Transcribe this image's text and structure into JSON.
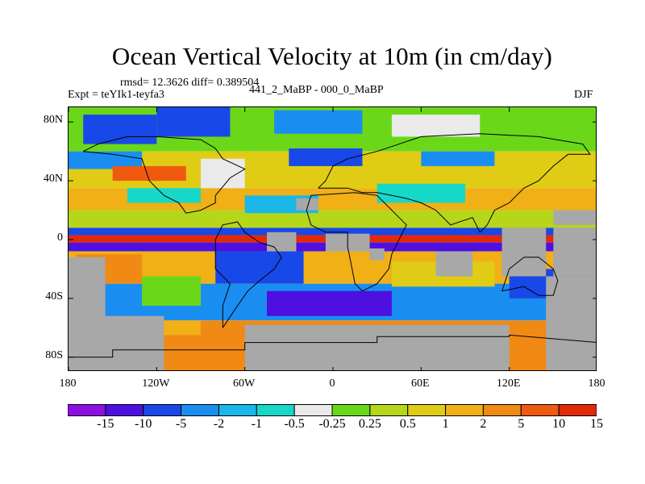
{
  "title": "Ocean Vertical Velocity at 10m (in cm/day)",
  "stats": "rmsd= 12.3626 diff= 0.389504",
  "experiment": "Expt = teYIk1-teyfa3",
  "case": "441_2_MaBP - 000_0_MaBP",
  "season": "DJF",
  "y_axis": {
    "ticks": [
      {
        "label": "80N",
        "value": 80
      },
      {
        "label": "40N",
        "value": 40
      },
      {
        "label": "0",
        "value": 0
      },
      {
        "label": "40S",
        "value": -40
      },
      {
        "label": "80S",
        "value": -80
      }
    ],
    "range": [
      -90,
      90
    ]
  },
  "x_axis": {
    "ticks": [
      {
        "label": "180",
        "value": -180
      },
      {
        "label": "120W",
        "value": -120
      },
      {
        "label": "60W",
        "value": -60
      },
      {
        "label": "0",
        "value": 0
      },
      {
        "label": "60E",
        "value": 60
      },
      {
        "label": "120E",
        "value": 120
      },
      {
        "label": "180",
        "value": 180
      }
    ],
    "range": [
      -180,
      180
    ]
  },
  "colorbar": {
    "colors": [
      "#8f0fe0",
      "#4d10e0",
      "#1848e8",
      "#1a8ef0",
      "#1ab8e8",
      "#17d8c8",
      "#eaeaea",
      "#6ad818",
      "#b6d61a",
      "#e0cc14",
      "#f0b016",
      "#f08a14",
      "#f05a10",
      "#e02a08"
    ],
    "labels": [
      "-15",
      "-10",
      "-5",
      "-2",
      "-1",
      "-0.5",
      "-0.25",
      "0.25",
      "0.5",
      "1",
      "2",
      "5",
      "10",
      "15"
    ]
  },
  "land_color": "#a8a8a8",
  "field": {
    "ocean_bands": [
      {
        "lat": [
          60,
          90
        ],
        "color_index": 7
      },
      {
        "lat": [
          35,
          60
        ],
        "color_index": 9
      },
      {
        "lat": [
          20,
          35
        ],
        "color_index": 10
      },
      {
        "lat": [
          8,
          20
        ],
        "color_index": 8
      },
      {
        "lat": [
          3,
          8
        ],
        "color_index": 2
      },
      {
        "lat": [
          -2,
          3
        ],
        "color_index": 13
      },
      {
        "lat": [
          -8,
          -2
        ],
        "color_index": 1
      },
      {
        "lat": [
          -30,
          -8
        ],
        "color_index": 10
      },
      {
        "lat": [
          -55,
          -30
        ],
        "color_index": 3
      },
      {
        "lat": [
          -90,
          -55
        ],
        "color_index": 11
      }
    ],
    "patches": [
      {
        "lon": [
          -170,
          -120
        ],
        "lat": [
          65,
          85
        ],
        "color_index": 2
      },
      {
        "lon": [
          -120,
          -70
        ],
        "lat": [
          70,
          90
        ],
        "color_index": 2
      },
      {
        "lon": [
          -40,
          20
        ],
        "lat": [
          72,
          88
        ],
        "color_index": 3
      },
      {
        "lon": [
          40,
          100
        ],
        "lat": [
          70,
          85
        ],
        "color_index": 6
      },
      {
        "lon": [
          -180,
          -130
        ],
        "lat": [
          48,
          60
        ],
        "color_index": 3
      },
      {
        "lon": [
          -90,
          -60
        ],
        "lat": [
          35,
          55
        ],
        "color_index": 6
      },
      {
        "lon": [
          -30,
          20
        ],
        "lat": [
          50,
          62
        ],
        "color_index": 2
      },
      {
        "lon": [
          60,
          110
        ],
        "lat": [
          50,
          60
        ],
        "color_index": 3
      },
      {
        "lon": [
          -150,
          -100
        ],
        "lat": [
          40,
          50
        ],
        "color_index": 12
      },
      {
        "lon": [
          -140,
          -90
        ],
        "lat": [
          25,
          35
        ],
        "color_index": 5
      },
      {
        "lon": [
          -60,
          -10
        ],
        "lat": [
          18,
          30
        ],
        "color_index": 4
      },
      {
        "lon": [
          30,
          90
        ],
        "lat": [
          25,
          38
        ],
        "color_index": 5
      },
      {
        "lon": [
          -175,
          -130
        ],
        "lat": [
          -30,
          -10
        ],
        "color_index": 11
      },
      {
        "lon": [
          -130,
          -90
        ],
        "lat": [
          -45,
          -25
        ],
        "color_index": 7
      },
      {
        "lon": [
          -80,
          -20
        ],
        "lat": [
          -30,
          -8
        ],
        "color_index": 2
      },
      {
        "lon": [
          -45,
          40
        ],
        "lat": [
          -52,
          -35
        ],
        "color_index": 1
      },
      {
        "lon": [
          40,
          110
        ],
        "lat": [
          -32,
          -15
        ],
        "color_index": 9
      },
      {
        "lon": [
          60,
          110
        ],
        "lat": [
          -45,
          -35
        ],
        "color_index": 3
      },
      {
        "lon": [
          120,
          180
        ],
        "lat": [
          -40,
          -20
        ],
        "color_index": 2
      },
      {
        "lon": [
          -150,
          -90
        ],
        "lat": [
          -65,
          -55
        ],
        "color_index": 10
      }
    ],
    "land": [
      {
        "lon": [
          -180,
          -155
        ],
        "lat": [
          -90,
          -12
        ]
      },
      {
        "lon": [
          -155,
          -115
        ],
        "lat": [
          -90,
          -52
        ]
      },
      {
        "lon": [
          -60,
          120
        ],
        "lat": [
          -90,
          -58
        ]
      },
      {
        "lon": [
          -45,
          -25
        ],
        "lat": [
          -8,
          5
        ]
      },
      {
        "lon": [
          -5,
          25
        ],
        "lat": [
          -8,
          4
        ]
      },
      {
        "lon": [
          25,
          35
        ],
        "lat": [
          -14,
          -6
        ]
      },
      {
        "lon": [
          -25,
          -10
        ],
        "lat": [
          20,
          28
        ]
      },
      {
        "lon": [
          70,
          95
        ],
        "lat": [
          -25,
          -8
        ]
      },
      {
        "lon": [
          115,
          145
        ],
        "lat": [
          -25,
          8
        ]
      },
      {
        "lon": [
          145,
          180
        ],
        "lat": [
          -90,
          -25
        ]
      },
      {
        "lon": [
          150,
          180
        ],
        "lat": [
          -25,
          8
        ]
      },
      {
        "lon": [
          150,
          180
        ],
        "lat": [
          10,
          20
        ]
      }
    ],
    "outlines": [
      [
        [
          -180,
          -80
        ],
        [
          -150,
          -80
        ],
        [
          -150,
          -75
        ],
        [
          -60,
          -75
        ],
        [
          -60,
          -70
        ],
        [
          30,
          -70
        ],
        [
          30,
          -66
        ],
        [
          120,
          -66
        ],
        [
          120,
          -65
        ],
        [
          180,
          -70
        ]
      ],
      [
        [
          -75,
          -60
        ],
        [
          -75,
          -45
        ],
        [
          -70,
          -30
        ],
        [
          -80,
          -20
        ],
        [
          -80,
          0
        ],
        [
          -75,
          10
        ],
        [
          -65,
          12
        ],
        [
          -60,
          5
        ],
        [
          -50,
          -2
        ],
        [
          -40,
          -5
        ],
        [
          -35,
          -12
        ],
        [
          -40,
          -20
        ],
        [
          -50,
          -28
        ],
        [
          -58,
          -35
        ],
        [
          -65,
          -45
        ],
        [
          -75,
          -60
        ]
      ],
      [
        [
          -170,
          60
        ],
        [
          -160,
          65
        ],
        [
          -140,
          70
        ],
        [
          -120,
          70
        ],
        [
          -90,
          68
        ],
        [
          -80,
          62
        ],
        [
          -75,
          55
        ],
        [
          -60,
          48
        ],
        [
          -70,
          42
        ],
        [
          -80,
          30
        ],
        [
          -80,
          25
        ],
        [
          -90,
          20
        ],
        [
          -100,
          18
        ],
        [
          -105,
          25
        ],
        [
          -115,
          30
        ],
        [
          -125,
          40
        ],
        [
          -130,
          55
        ],
        [
          -150,
          58
        ],
        [
          -170,
          60
        ]
      ],
      [
        [
          -10,
          35
        ],
        [
          -5,
          40
        ],
        [
          0,
          50
        ],
        [
          10,
          55
        ],
        [
          30,
          60
        ],
        [
          60,
          70
        ],
        [
          100,
          72
        ],
        [
          140,
          70
        ],
        [
          170,
          65
        ],
        [
          175,
          58
        ],
        [
          160,
          58
        ],
        [
          150,
          50
        ],
        [
          140,
          40
        ],
        [
          130,
          35
        ],
        [
          120,
          25
        ],
        [
          110,
          20
        ],
        [
          105,
          10
        ],
        [
          100,
          5
        ],
        [
          95,
          15
        ],
        [
          80,
          10
        ],
        [
          70,
          20
        ],
        [
          60,
          25
        ],
        [
          50,
          28
        ],
        [
          40,
          30
        ],
        [
          30,
          32
        ],
        [
          20,
          32
        ],
        [
          10,
          35
        ],
        [
          -10,
          35
        ]
      ],
      [
        [
          -15,
          30
        ],
        [
          -18,
          20
        ],
        [
          -15,
          10
        ],
        [
          -5,
          5
        ],
        [
          10,
          5
        ],
        [
          10,
          -5
        ],
        [
          12,
          -15
        ],
        [
          15,
          -30
        ],
        [
          20,
          -35
        ],
        [
          30,
          -30
        ],
        [
          38,
          -20
        ],
        [
          40,
          -10
        ],
        [
          50,
          10
        ],
        [
          45,
          15
        ],
        [
          35,
          25
        ],
        [
          30,
          30
        ],
        [
          15,
          32
        ],
        [
          -15,
          30
        ]
      ],
      [
        [
          115,
          -35
        ],
        [
          120,
          -20
        ],
        [
          130,
          -12
        ],
        [
          140,
          -12
        ],
        [
          150,
          -20
        ],
        [
          153,
          -28
        ],
        [
          150,
          -38
        ],
        [
          140,
          -38
        ],
        [
          130,
          -32
        ],
        [
          115,
          -35
        ]
      ]
    ]
  }
}
